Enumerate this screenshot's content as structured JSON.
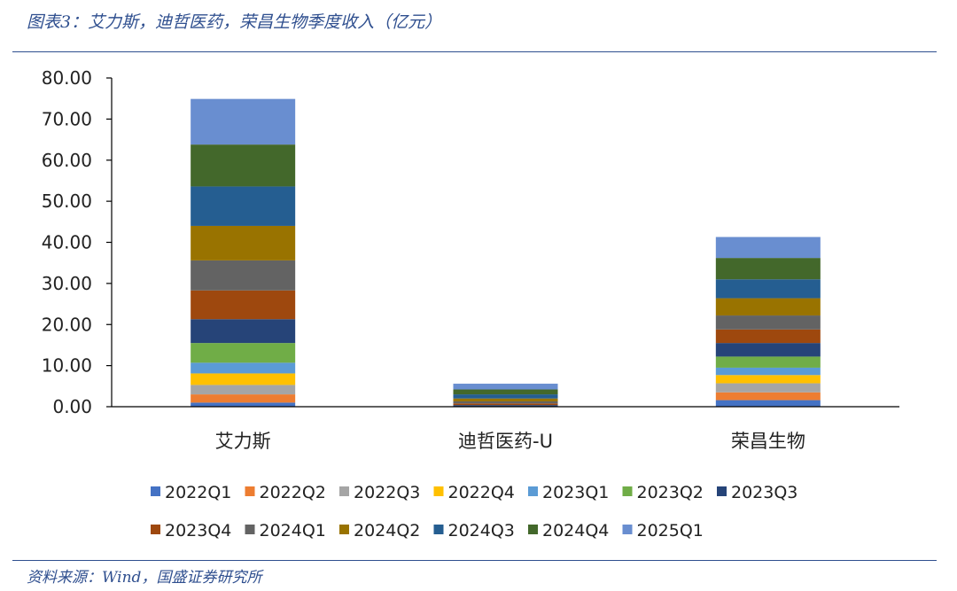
{
  "title": "图表3：艾力斯，迪哲医药，荣昌生物季度收入（亿元）",
  "source": "资料来源：Wind，国盛证券研究所",
  "chart_data": {
    "type": "bar",
    "stacked": true,
    "categories": [
      "艾力斯",
      "迪哲医药-U",
      "荣昌生物"
    ],
    "ylim": [
      0,
      80
    ],
    "yticks": [
      "0.00",
      "10.00",
      "20.00",
      "30.00",
      "40.00",
      "50.00",
      "60.00",
      "70.00",
      "80.00"
    ],
    "legend_position": "bottom",
    "grid": false,
    "series": [
      {
        "name": "2022Q1",
        "color": "#4472C4",
        "values": [
          1.0,
          0.0,
          1.6
        ]
      },
      {
        "name": "2022Q2",
        "color": "#ED7D31",
        "values": [
          2.0,
          0.0,
          1.9
        ]
      },
      {
        "name": "2022Q3",
        "color": "#A5A5A5",
        "values": [
          2.3,
          0.0,
          2.2
        ]
      },
      {
        "name": "2022Q4",
        "color": "#FFC000",
        "values": [
          2.8,
          0.0,
          2.0
        ]
      },
      {
        "name": "2023Q1",
        "color": "#5B9BD5",
        "values": [
          2.6,
          0.0,
          1.8
        ]
      },
      {
        "name": "2023Q2",
        "color": "#70AD47",
        "values": [
          4.8,
          0.1,
          2.7
        ]
      },
      {
        "name": "2023Q3",
        "color": "#264478",
        "values": [
          5.8,
          0.3,
          3.3
        ]
      },
      {
        "name": "2023Q4",
        "color": "#9E480E",
        "values": [
          7.0,
          0.4,
          3.3
        ]
      },
      {
        "name": "2024Q1",
        "color": "#636363",
        "values": [
          7.3,
          0.5,
          3.4
        ]
      },
      {
        "name": "2024Q2",
        "color": "#997300",
        "values": [
          8.4,
          0.7,
          4.2
        ]
      },
      {
        "name": "2024Q3",
        "color": "#255E91",
        "values": [
          9.6,
          1.0,
          4.6
        ]
      },
      {
        "name": "2024Q4",
        "color": "#43682B",
        "values": [
          10.2,
          1.2,
          5.2
        ]
      },
      {
        "name": "2025Q1",
        "color": "#698ED0",
        "values": [
          11.1,
          1.4,
          5.1
        ]
      }
    ]
  }
}
